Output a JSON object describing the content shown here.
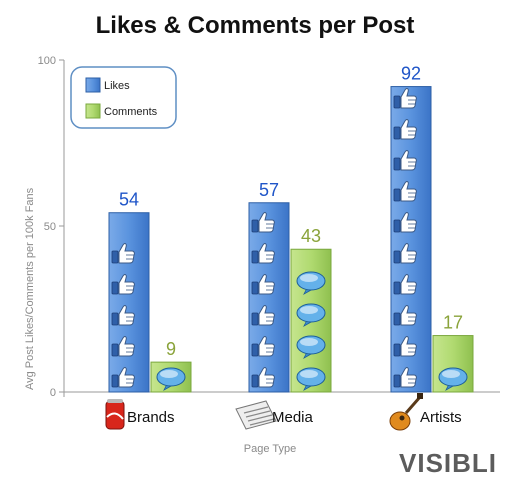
{
  "chart_data": {
    "type": "bar",
    "title": "Likes & Comments per Post",
    "xlabel": "Page Type",
    "ylabel": "Avg Post Likes/Comments per 100k Fans",
    "ylim": [
      0,
      100
    ],
    "yticks": [
      0,
      50,
      100
    ],
    "categories": [
      "Brands",
      "Media",
      "Artists"
    ],
    "category_icons": [
      "soda-can-icon",
      "newspaper-icon",
      "guitar-icon"
    ],
    "series": [
      {
        "name": "Likes",
        "values": [
          54,
          57,
          92
        ],
        "color": "#4a86d6",
        "label_color": "#1f55c8",
        "icon": "thumbs-up-icon"
      },
      {
        "name": "Comments",
        "values": [
          9,
          43,
          17
        ],
        "color": "#a6d35f",
        "label_color": "#8aa33a",
        "icon": "speech-bubble-icon"
      }
    ],
    "legend_position": "top-left",
    "grid": false
  },
  "branding": {
    "logo_text": "VISIBLI"
  }
}
